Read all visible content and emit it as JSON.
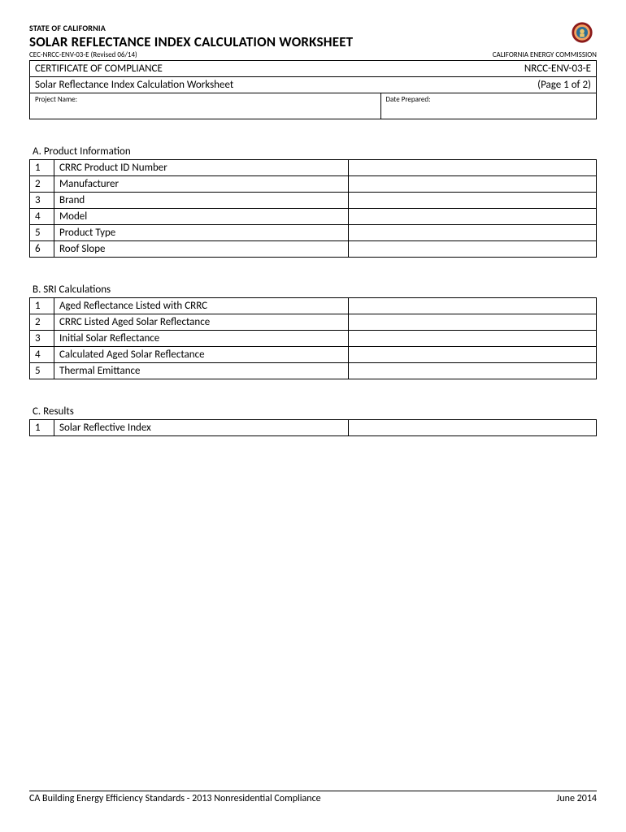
{
  "header": {
    "state": "STATE OF CALIFORNIA",
    "title": "SOLAR REFLECTANCE INDEX CALCULATION WORKSHEET",
    "form_code": "CEC-NRCC-ENV-03-E (Revised 06/14)",
    "commission": "CALIFORNIA ENERGY COMMISSION"
  },
  "cert": {
    "left1": "CERTIFICATE OF COMPLIANCE",
    "right1": "NRCC-ENV-03-E",
    "left2": "Solar Reflectance Index Calculation Worksheet",
    "right2": "(Page 1 of 2)",
    "project_label": "Project Name:",
    "date_label": "Date Prepared:"
  },
  "sections": [
    {
      "title": "A.  Product Information",
      "rows": [
        {
          "n": "1",
          "label": "CRRC Product ID Number",
          "value": ""
        },
        {
          "n": "2",
          "label": "Manufacturer",
          "value": ""
        },
        {
          "n": "3",
          "label": "Brand",
          "value": ""
        },
        {
          "n": "4",
          "label": "Model",
          "value": ""
        },
        {
          "n": "5",
          "label": "Product Type",
          "value": ""
        },
        {
          "n": "6",
          "label": "Roof Slope",
          "value": ""
        }
      ]
    },
    {
      "title": "B.  SRI Calculations",
      "rows": [
        {
          "n": "1",
          "label": "Aged Reflectance Listed with CRRC",
          "value": ""
        },
        {
          "n": "2",
          "label": "CRRC Listed Aged Solar Reflectance",
          "value": ""
        },
        {
          "n": "3",
          "label": "Initial Solar Reflectance",
          "value": ""
        },
        {
          "n": "4",
          "label": "Calculated Aged Solar Reflectance",
          "value": ""
        },
        {
          "n": "5",
          "label": "Thermal Emittance",
          "value": ""
        }
      ]
    },
    {
      "title": "C.  Results",
      "rows": [
        {
          "n": "1",
          "label": "Solar Reflective Index",
          "value": ""
        }
      ]
    }
  ],
  "footer": {
    "left": "CA Building Energy Efficiency Standards - 2013 Nonresidential Compliance",
    "right": "June 2014"
  },
  "seal": {
    "outer_color": "#8b1a1a",
    "mid_color": "#f4a261",
    "inner_color": "#2a6f97",
    "accent": "#e9c46a"
  }
}
